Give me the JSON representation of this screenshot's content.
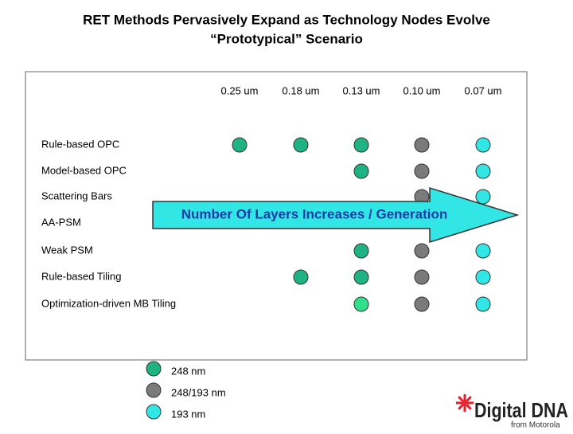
{
  "header": {
    "title_line1": "RET Methods Pervasively Expand as Technology Nodes Evolve",
    "title_line2": "“Prototypical” Scenario"
  },
  "table": {
    "columns": [
      "0.25 um",
      "0.18 um",
      "0.13 um",
      "0.10 um",
      "0.07  um"
    ],
    "rows": [
      {
        "label": "Rule-based OPC",
        "cells": [
          "#1fb383",
          "#1fb383",
          "#1fb383",
          "#7a7a7a",
          "#33e6e6"
        ]
      },
      {
        "label": "Model-based OPC",
        "cells": [
          null,
          null,
          "#1fb383",
          "#7a7a7a",
          "#33e6e6"
        ]
      },
      {
        "label": "Scattering Bars",
        "cells": [
          null,
          null,
          null,
          "#7a7a7a",
          "#33e6e6"
        ]
      },
      {
        "label": "AA-PSM",
        "cells": [
          null,
          null,
          null,
          null,
          null
        ]
      },
      {
        "label": "Weak PSM",
        "cells": [
          null,
          null,
          "#1fb383",
          "#7a7a7a",
          "#33e6e6"
        ]
      },
      {
        "label": "Rule-based Tiling",
        "cells": [
          null,
          "#1fb383",
          "#1fb383",
          "#7a7a7a",
          "#33e6e6"
        ]
      },
      {
        "label": "Optimization-driven MB Tiling",
        "cells": [
          null,
          null,
          "#33e08a",
          "#7a7a7a",
          "#33e6e6"
        ]
      }
    ]
  },
  "arrow": {
    "label": "Number Of Layers Increases / Generation"
  },
  "legend": [
    {
      "label": "248 nm",
      "color": "#1fb383"
    },
    {
      "label": "248/193  nm",
      "color": "#7a7a7a"
    },
    {
      "label": "193 nm",
      "color": "#33e6e6"
    }
  ],
  "logo": {
    "brand": "Digital DNA",
    "byline": "from Motorola"
  }
}
